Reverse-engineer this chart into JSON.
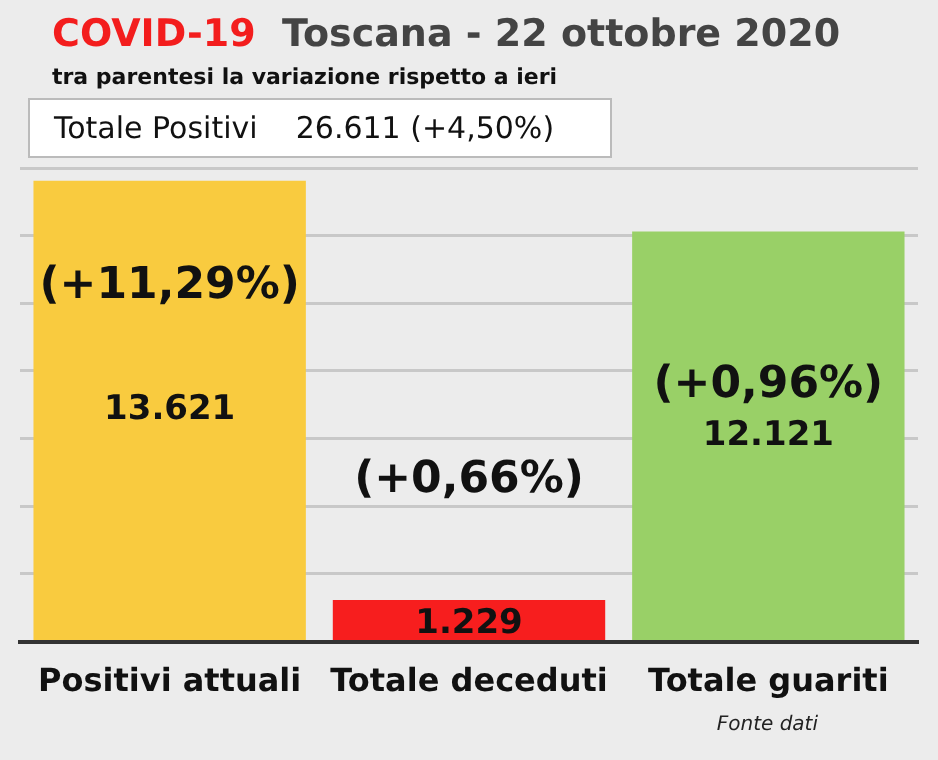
{
  "chart_data": {
    "type": "bar",
    "title": "COVID-19  Toscana - 22 ottobre 2020",
    "subtitle": "tra parentesi la variazione rispetto a ieri",
    "categories": [
      "Positivi attuali",
      "Totale deceduti",
      "Totale guariti"
    ],
    "values": [
      13621,
      1229,
      12121
    ],
    "colors": [
      "#f9cb3f",
      "#f71e1e",
      "#99d067"
    ],
    "value_labels": [
      "13.621",
      "1.229",
      "12.121"
    ],
    "ylim": [
      0,
      14000
    ],
    "yticks": [
      {
        "value": 0,
        "label": null
      },
      {
        "value": 2000,
        "label": null
      },
      {
        "value": 4000,
        "label": null
      },
      {
        "value": 6000,
        "label": null
      },
      {
        "value": 8000,
        "label": null
      },
      {
        "value": 10000,
        "label": null
      },
      {
        "value": 12000,
        "label": null
      },
      {
        "value": 14000,
        "label": null
      }
    ],
    "tick_labels": "x",
    "grid": "y",
    "legend": false,
    "annotations": [
      "Totale Positivi    26.611 (+4,50%)",
      "(+11,29%)",
      "(+0,66%)",
      "(+0,96%)",
      "Fonte dati"
    ]
  }
}
